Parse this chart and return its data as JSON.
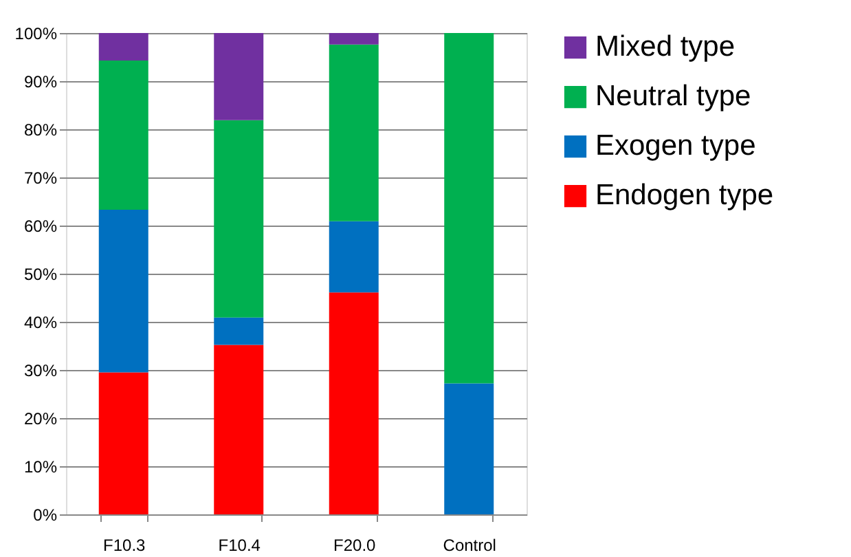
{
  "chart_data": {
    "type": "bar",
    "stacked": true,
    "categories": [
      "F10.3",
      "F10.4",
      "F20.0",
      "Control"
    ],
    "series": [
      {
        "name": "Endogen type",
        "color": "#ff0000",
        "values": [
          29.5,
          35.2,
          46.1,
          0
        ]
      },
      {
        "name": "Exogen type",
        "color": "#0070c0",
        "values": [
          33.8,
          5.7,
          14.8,
          27.2
        ]
      },
      {
        "name": "Neutral type",
        "color": "#00b050",
        "values": [
          31.0,
          41.0,
          36.7,
          72.8
        ]
      },
      {
        "name": "Mixed type",
        "color": "#7030a0",
        "values": [
          5.7,
          18.1,
          2.4,
          0
        ]
      }
    ],
    "ylim": [
      0,
      100
    ],
    "yticks": [
      {
        "value": 0,
        "label": "0%"
      },
      {
        "value": 10,
        "label": "10%"
      },
      {
        "value": 20,
        "label": "20%"
      },
      {
        "value": 30,
        "label": "30%"
      },
      {
        "value": 40,
        "label": "40%"
      },
      {
        "value": 50,
        "label": "50%"
      },
      {
        "value": 60,
        "label": "60%"
      },
      {
        "value": 70,
        "label": "70%"
      },
      {
        "value": 80,
        "label": "80%"
      },
      {
        "value": 90,
        "label": "90%"
      },
      {
        "value": 100,
        "label": "100%"
      }
    ],
    "grid": "y",
    "legend": "right"
  }
}
